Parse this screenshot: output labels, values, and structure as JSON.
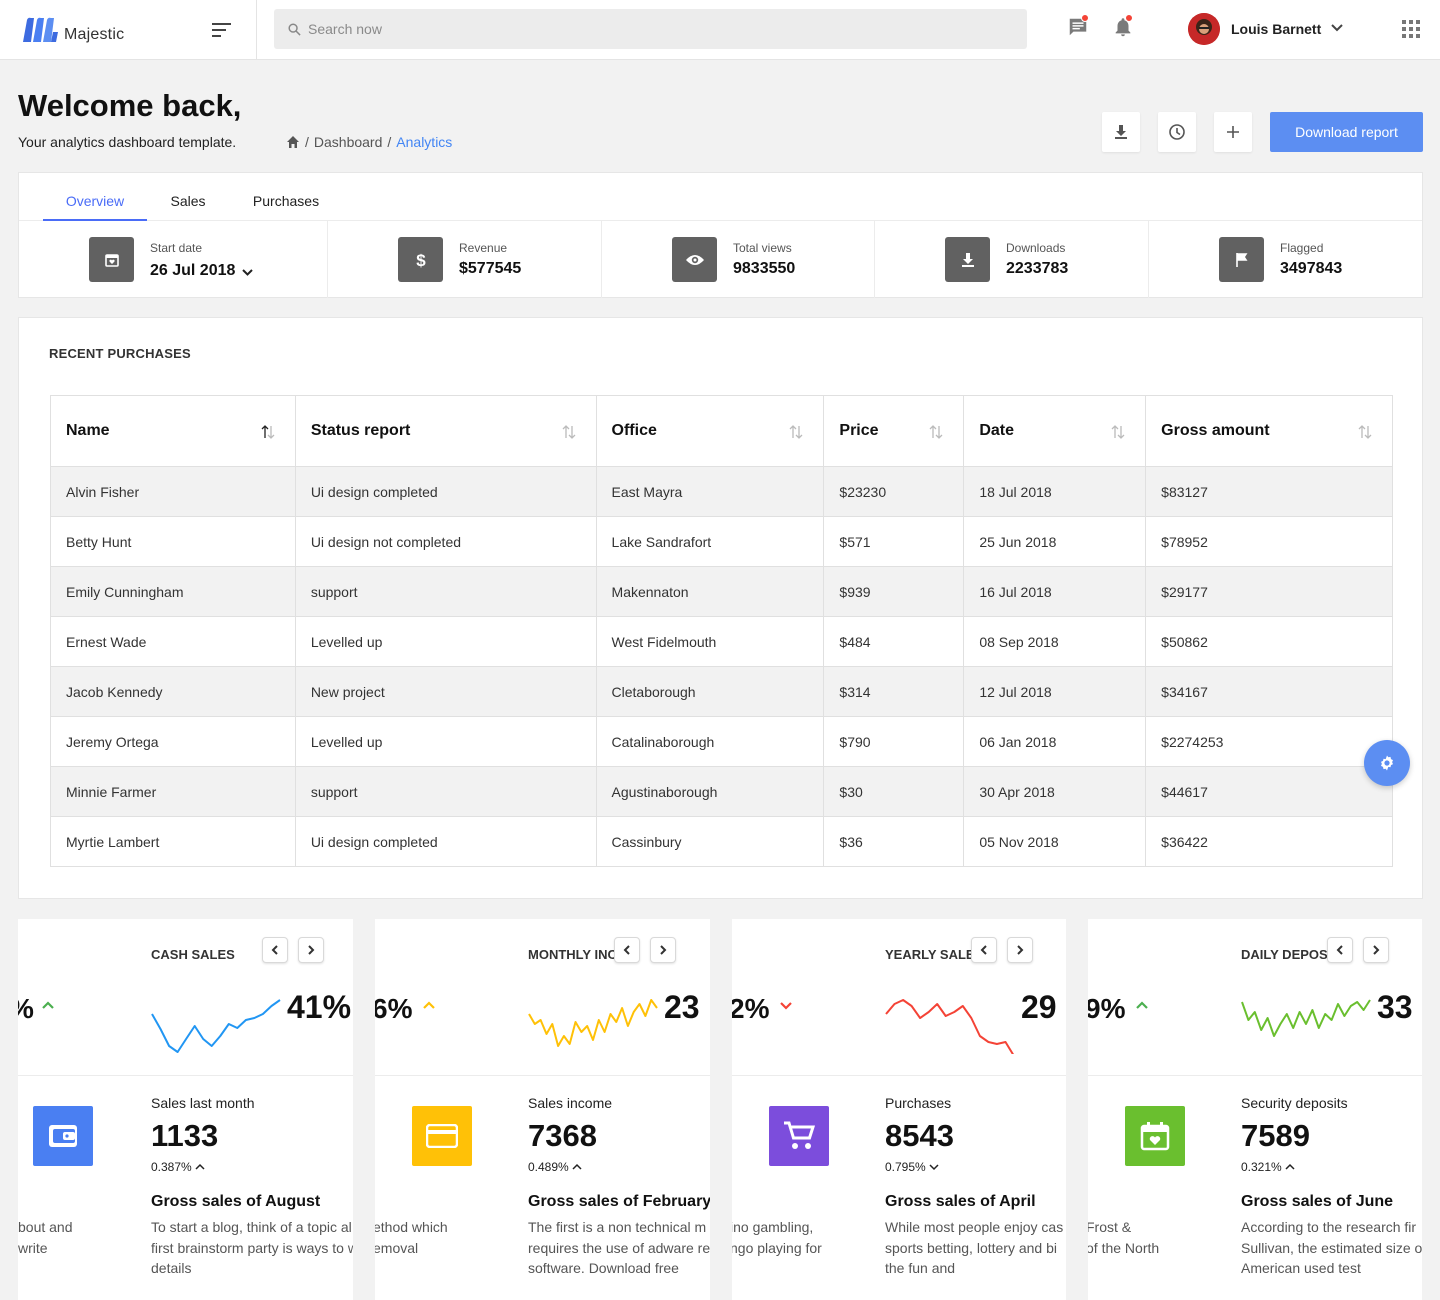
{
  "brand": {
    "name": "Majestic"
  },
  "search": {
    "placeholder": "Search now"
  },
  "user": {
    "name": "Louis Barnett"
  },
  "page": {
    "title": "Welcome back,",
    "subtitle": "Your analytics dashboard template."
  },
  "breadcrumb": {
    "items": [
      "Dashboard",
      "Analytics"
    ],
    "separator": "/"
  },
  "actions": {
    "download_report": "Download report"
  },
  "tabs": [
    "Overview",
    "Sales",
    "Purchases"
  ],
  "stats": [
    {
      "label": "Start date",
      "value": "26 Jul 2018",
      "icon": "calendar-icon"
    },
    {
      "label": "Revenue",
      "value": "$577545",
      "icon": "dollar-icon"
    },
    {
      "label": "Total views",
      "value": "9833550",
      "icon": "eye-icon"
    },
    {
      "label": "Downloads",
      "value": "2233783",
      "icon": "download-icon"
    },
    {
      "label": "Flagged",
      "value": "3497843",
      "icon": "flag-icon"
    }
  ],
  "purchases": {
    "title": "RECENT PURCHASES",
    "columns": [
      "Name",
      "Status report",
      "Office",
      "Price",
      "Date",
      "Gross amount"
    ],
    "rows": [
      [
        "Alvin Fisher",
        "Ui design completed",
        "East Mayra",
        "$23230",
        "18 Jul 2018",
        "$83127"
      ],
      [
        "Betty Hunt",
        "Ui design not completed",
        "Lake Sandrafort",
        "$571",
        "25 Jun 2018",
        "$78952"
      ],
      [
        "Emily Cunningham",
        "support",
        "Makennaton",
        "$939",
        "16 Jul 2018",
        "$29177"
      ],
      [
        "Ernest Wade",
        "Levelled up",
        "West Fidelmouth",
        "$484",
        "08 Sep 2018",
        "$50862"
      ],
      [
        "Jacob Kennedy",
        "New project",
        "Cletaborough",
        "$314",
        "12 Jul 2018",
        "$34167"
      ],
      [
        "Jeremy Ortega",
        "Levelled up",
        "Catalinaborough",
        "$790",
        "06 Jan 2018",
        "$2274253"
      ],
      [
        "Minnie Farmer",
        "support",
        "Agustinaborough",
        "$30",
        "30 Apr 2018",
        "$44617"
      ],
      [
        "Myrtie Lambert",
        "Ui design completed",
        "Cassinbury",
        "$36",
        "05 Nov 2018",
        "$36422"
      ]
    ]
  },
  "cards": [
    {
      "title": "CASH SALES",
      "pct_left": "%",
      "pct_right": "41%",
      "trend": "up",
      "trend_color": "#4caf50",
      "line_color": "#2196f3",
      "icon": "wallet-icon",
      "icon_bg": "#4a7ff2",
      "label": "Sales last month",
      "value": "1133",
      "change": "0.387%",
      "change_dir": "up",
      "heading": "Gross sales of August",
      "text": [
        "To start a blog, think of a topic al",
        "first brainstorm party is ways to w",
        "details"
      ],
      "side": [
        "bout and",
        "write"
      ],
      "spark": [
        30,
        45,
        62,
        68,
        55,
        42,
        55,
        62,
        52,
        40,
        44,
        36,
        34,
        30,
        22,
        16
      ]
    },
    {
      "title": "MONTHLY INC",
      "pct_left": "6%",
      "pct_right": "23",
      "trend": "up",
      "trend_color": "#ffc107",
      "line_color": "#ffc107",
      "icon": "credit-card-icon",
      "icon_bg": "#ffc107",
      "label": "Sales income",
      "value": "7368",
      "change": "0.489%",
      "change_dir": "up",
      "heading": "Gross sales of February",
      "text": [
        "The first is a non technical m",
        "requires the use of adware re",
        "software. Download free"
      ],
      "side": [
        "ethod which",
        "emoval"
      ],
      "spark": [
        30,
        40,
        36,
        50,
        40,
        62,
        52,
        60,
        38,
        48,
        42,
        56,
        36,
        48,
        30,
        38,
        24,
        42,
        28,
        20,
        32,
        16,
        24
      ]
    },
    {
      "title": "YEARLY SALE",
      "pct_left": "2%",
      "pct_right": "29",
      "trend": "down",
      "trend_color": "#f44336",
      "line_color": "#f44336",
      "icon": "cart-icon",
      "icon_bg": "#7c4ddc",
      "label": "Purchases",
      "value": "8543",
      "change": "0.795%",
      "change_dir": "down",
      "heading": "Gross sales of April",
      "text": [
        "While most people enjoy cas",
        "sports betting, lottery and bi",
        "the fun and"
      ],
      "side": [
        "ino gambling,",
        "ngo playing for"
      ],
      "spark": [
        30,
        20,
        16,
        22,
        34,
        28,
        20,
        32,
        28,
        22,
        34,
        52,
        58,
        60,
        58,
        72
      ]
    },
    {
      "title": "DAILY DEPOSI",
      "pct_left": "9%",
      "pct_right": "33",
      "trend": "up",
      "trend_color": "#4caf50",
      "line_color": "#6abf2f",
      "icon": "calendar-heart-icon",
      "icon_bg": "#6abf2f",
      "label": "Security deposits",
      "value": "7589",
      "change": "0.321%",
      "change_dir": "up",
      "heading": "Gross sales of June",
      "text": [
        "According to the research fir",
        "Sullivan, the estimated size o",
        "American used test"
      ],
      "side": [
        "Frost &",
        "of the North"
      ],
      "spark": [
        18,
        36,
        28,
        46,
        34,
        52,
        40,
        30,
        44,
        28,
        40,
        26,
        44,
        30,
        36,
        20,
        32,
        22,
        18,
        26,
        16
      ]
    }
  ]
}
